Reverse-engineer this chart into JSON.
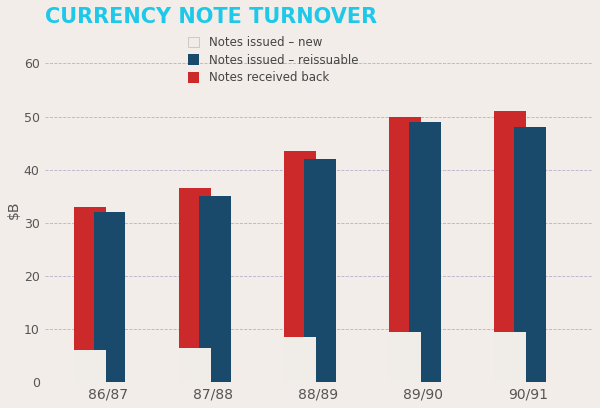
{
  "title": "CURRENCY NOTE TURNOVER",
  "title_color": "#1EC8E8",
  "categories": [
    "86/87",
    "87/88",
    "88/89",
    "89/90",
    "90/91"
  ],
  "notes_new": [
    6.0,
    6.5,
    8.5,
    9.5,
    9.5
  ],
  "notes_reissuable": [
    32.0,
    35.0,
    42.0,
    49.0,
    48.0
  ],
  "notes_received": [
    33.0,
    36.5,
    43.5,
    50.0,
    51.0
  ],
  "color_new": "#f0ede8",
  "color_reissuable": "#1a4a6b",
  "color_received": "#cc2a2a",
  "ylim": [
    0,
    65
  ],
  "yticks": [
    0,
    10,
    20,
    30,
    40,
    50,
    60
  ],
  "background_color": "#f2ede8",
  "grid_color": "#b8b0cc",
  "legend_labels": [
    "Notes issued – new",
    "Notes issued – reissuable",
    "Notes received back"
  ],
  "bar_width": 0.3,
  "bar_gap": 0.04
}
